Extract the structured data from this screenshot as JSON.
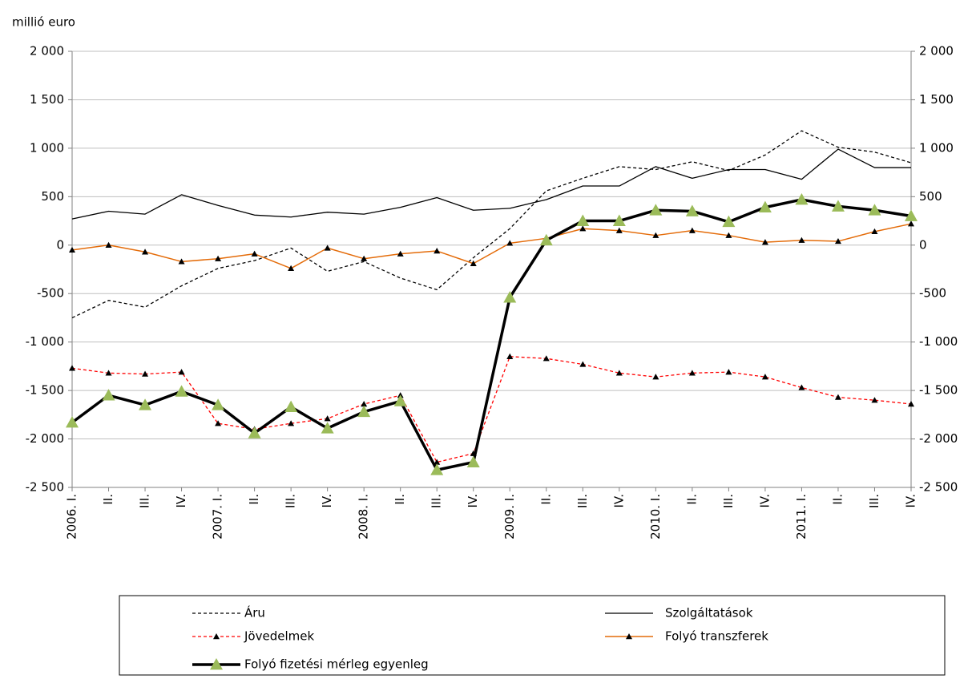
{
  "chart_data": {
    "type": "line",
    "y_label": "millió euro",
    "categories": [
      "2006. I.",
      "II.",
      "III.",
      "IV.",
      "2007. I.",
      "II.",
      "III.",
      "IV.",
      "2008. I.",
      "II.",
      "III.",
      "IV.",
      "2009. I.",
      "II.",
      "III.",
      "IV.",
      "2010. I.",
      "II.",
      "III.",
      "IV.",
      "2011. I.",
      "II.",
      "III.",
      "IV."
    ],
    "ylim": [
      -2500,
      2000
    ],
    "yticks": [
      {
        "value": -2500,
        "label": "-2 500"
      },
      {
        "value": -2000,
        "label": "-2 000"
      },
      {
        "value": -1500,
        "label": "-1 500"
      },
      {
        "value": -1000,
        "label": "-1 000"
      },
      -500,
      0,
      500,
      {
        "value": 1000,
        "label": "1 000"
      },
      {
        "value": 1500,
        "label": "1 500"
      },
      {
        "value": 2000,
        "label": "2 000"
      }
    ],
    "grid": true,
    "series": [
      {
        "name": "Áru",
        "color": "#000000",
        "dash": "4,3",
        "width": 1.3,
        "marker": "none",
        "values": [
          -750,
          -570,
          -640,
          -420,
          -240,
          -160,
          -30,
          -270,
          -170,
          -340,
          -460,
          -130,
          170,
          560,
          690,
          810,
          780,
          860,
          770,
          930,
          1180,
          1010,
          960,
          850
        ]
      },
      {
        "name": "Szolgáltatások",
        "color": "#000000",
        "dash": "none",
        "width": 1.3,
        "marker": "none",
        "values": [
          270,
          350,
          320,
          520,
          410,
          310,
          290,
          340,
          320,
          390,
          490,
          360,
          380,
          470,
          610,
          610,
          810,
          690,
          780,
          780,
          680,
          990,
          800,
          800
        ]
      },
      {
        "name": "Jövedelmek",
        "color": "#ff0000",
        "dash": "4,3",
        "width": 1.3,
        "marker": "small",
        "values": [
          -1270,
          -1320,
          -1330,
          -1310,
          -1840,
          -1900,
          -1840,
          -1790,
          -1640,
          -1550,
          -2240,
          -2150,
          -1150,
          -1170,
          -1230,
          -1320,
          -1360,
          -1320,
          -1310,
          -1360,
          -1470,
          -1570,
          -1600,
          -1640
        ]
      },
      {
        "name": "Folyó transzferek",
        "color": "#e46c0a",
        "dash": "none",
        "width": 1.5,
        "marker": "small",
        "values": [
          -50,
          0,
          -70,
          -170,
          -140,
          -90,
          -240,
          -30,
          -140,
          -90,
          -60,
          -190,
          20,
          70,
          170,
          150,
          100,
          150,
          100,
          30,
          50,
          40,
          140,
          220
        ]
      },
      {
        "name": "Folyó fizetési mérleg egyenleg",
        "color": "#000000",
        "dash": "none",
        "width": 3.5,
        "marker": "big",
        "values": [
          -1830,
          -1550,
          -1650,
          -1510,
          -1650,
          -1940,
          -1670,
          -1890,
          -1720,
          -1610,
          -2320,
          -2240,
          -540,
          50,
          250,
          250,
          360,
          350,
          240,
          390,
          470,
          400,
          360,
          300
        ]
      }
    ]
  }
}
